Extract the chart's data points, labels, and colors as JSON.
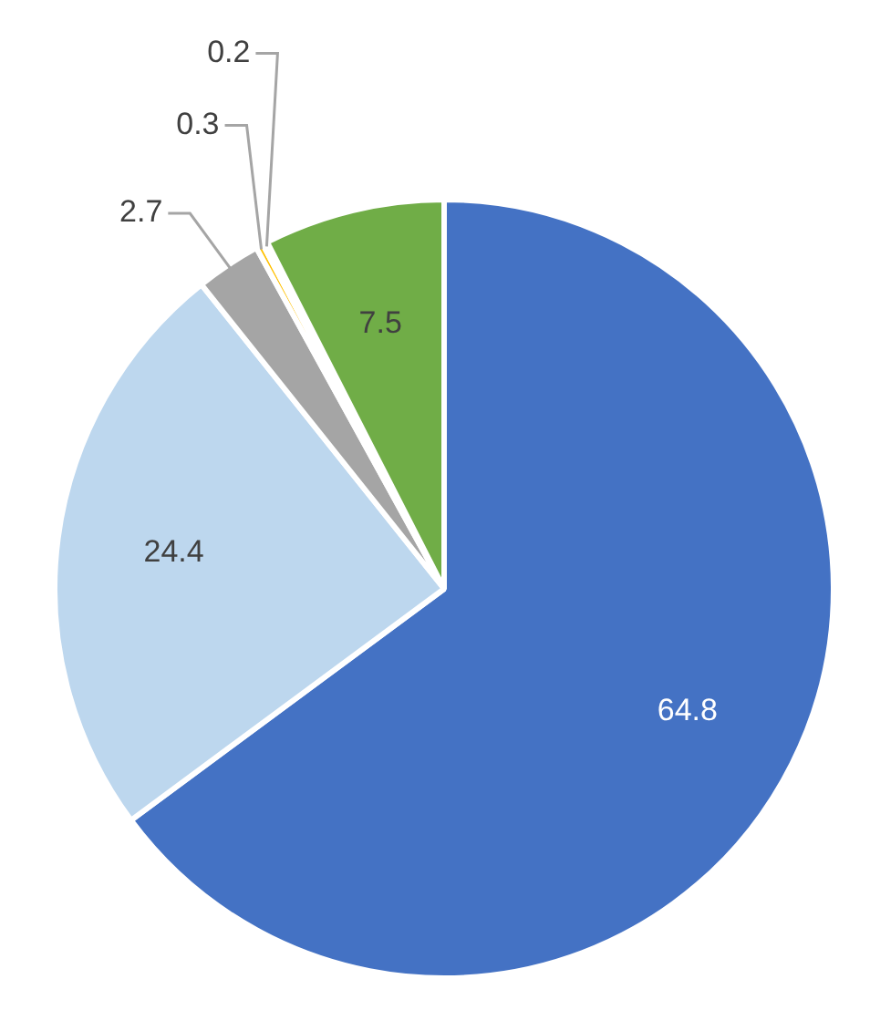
{
  "chart_data": {
    "type": "pie",
    "categories": [
      null,
      null,
      null,
      null,
      null,
      null
    ],
    "values": [
      64.8,
      24.4,
      2.7,
      0.3,
      0.2,
      7.5
    ],
    "colors": [
      "#4472c4",
      "#bdd7ee",
      "#a5a5a5",
      "#ffc000",
      "#264478",
      "#70ad47"
    ],
    "data_labels": true,
    "legend": false
  }
}
